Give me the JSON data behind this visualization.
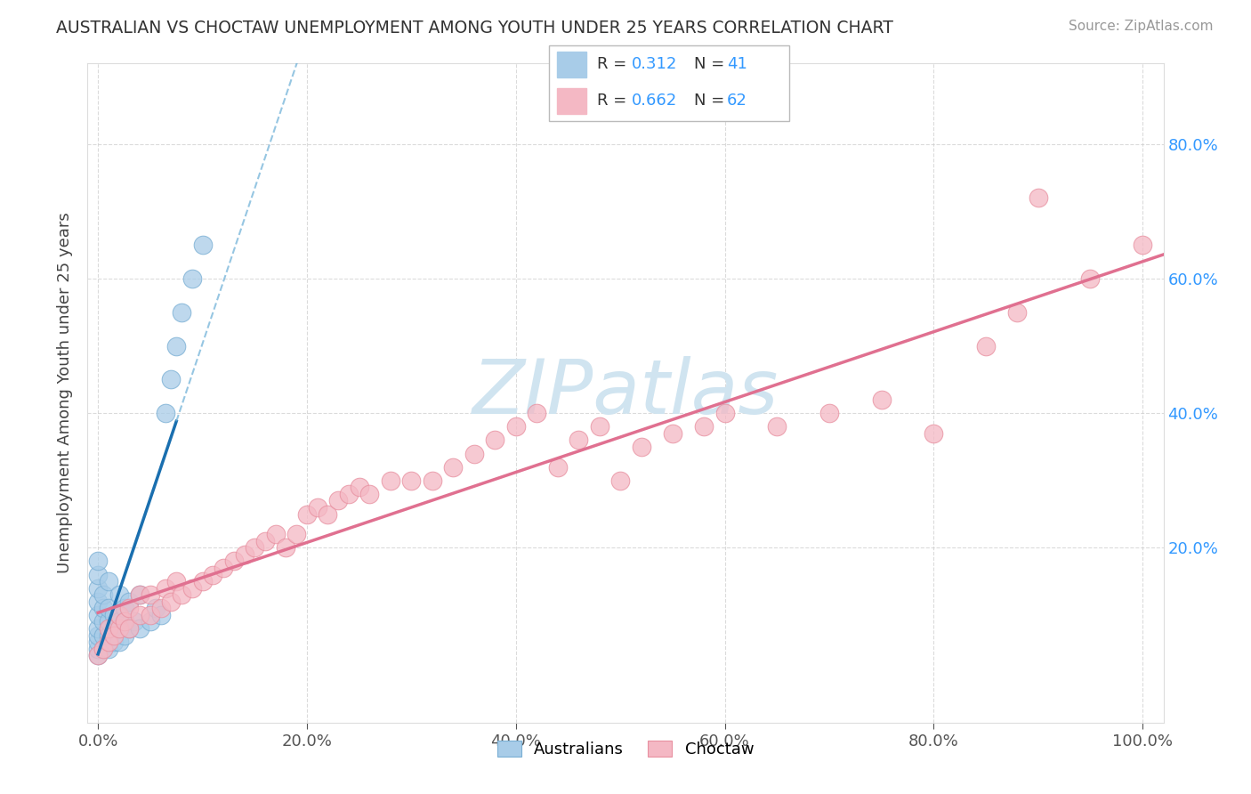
{
  "title": "AUSTRALIAN VS CHOCTAW UNEMPLOYMENT AMONG YOUTH UNDER 25 YEARS CORRELATION CHART",
  "source": "Source: ZipAtlas.com",
  "ylabel": "Unemployment Among Youth under 25 years",
  "xlim": [
    -0.01,
    1.02
  ],
  "ylim": [
    -0.06,
    0.92
  ],
  "xtick_labels": [
    "0.0%",
    "20.0%",
    "40.0%",
    "60.0%",
    "80.0%",
    "100.0%"
  ],
  "xtick_vals": [
    0.0,
    0.2,
    0.4,
    0.6,
    0.8,
    1.0
  ],
  "ytick_labels": [
    "20.0%",
    "40.0%",
    "60.0%",
    "80.0%"
  ],
  "ytick_vals": [
    0.2,
    0.4,
    0.6,
    0.8
  ],
  "blue_color": "#a8cce8",
  "pink_color": "#f4b8c4",
  "blue_edge": "#7aafd4",
  "pink_edge": "#e890a0",
  "line_blue_solid": "#1a6faf",
  "line_blue_dash": "#6aaed6",
  "line_pink": "#e07090",
  "title_color": "#333333",
  "watermark_color": "#d0e4f0",
  "r_value_color": "#3399ff",
  "background_color": "#ffffff",
  "grid_color": "#cccccc",
  "right_tick_color": "#3399ff",
  "left_tick_color": "#555555",
  "aus_x": [
    0.0,
    0.0,
    0.0,
    0.0,
    0.0,
    0.0,
    0.0,
    0.0,
    0.0,
    0.0,
    0.005,
    0.005,
    0.005,
    0.005,
    0.005,
    0.01,
    0.01,
    0.01,
    0.01,
    0.01,
    0.015,
    0.015,
    0.02,
    0.02,
    0.02,
    0.025,
    0.025,
    0.03,
    0.03,
    0.035,
    0.04,
    0.04,
    0.05,
    0.055,
    0.06,
    0.065,
    0.07,
    0.075,
    0.08,
    0.09,
    0.1
  ],
  "aus_y": [
    0.04,
    0.05,
    0.06,
    0.07,
    0.08,
    0.1,
    0.12,
    0.14,
    0.16,
    0.18,
    0.05,
    0.07,
    0.09,
    0.11,
    0.13,
    0.05,
    0.07,
    0.09,
    0.11,
    0.15,
    0.06,
    0.1,
    0.06,
    0.09,
    0.13,
    0.07,
    0.11,
    0.08,
    0.12,
    0.09,
    0.08,
    0.13,
    0.09,
    0.11,
    0.1,
    0.4,
    0.45,
    0.5,
    0.55,
    0.6,
    0.65
  ],
  "cho_x": [
    0.0,
    0.005,
    0.01,
    0.01,
    0.015,
    0.02,
    0.02,
    0.025,
    0.03,
    0.03,
    0.04,
    0.04,
    0.05,
    0.05,
    0.06,
    0.065,
    0.07,
    0.075,
    0.08,
    0.09,
    0.1,
    0.11,
    0.12,
    0.13,
    0.14,
    0.15,
    0.16,
    0.17,
    0.18,
    0.19,
    0.2,
    0.21,
    0.22,
    0.23,
    0.24,
    0.25,
    0.26,
    0.28,
    0.3,
    0.32,
    0.34,
    0.36,
    0.38,
    0.4,
    0.42,
    0.44,
    0.46,
    0.48,
    0.5,
    0.52,
    0.55,
    0.58,
    0.6,
    0.65,
    0.7,
    0.75,
    0.8,
    0.85,
    0.88,
    0.9,
    0.95,
    1.0
  ],
  "cho_y": [
    0.04,
    0.05,
    0.06,
    0.08,
    0.07,
    0.08,
    0.1,
    0.09,
    0.08,
    0.11,
    0.1,
    0.13,
    0.1,
    0.13,
    0.11,
    0.14,
    0.12,
    0.15,
    0.13,
    0.14,
    0.15,
    0.16,
    0.17,
    0.18,
    0.19,
    0.2,
    0.21,
    0.22,
    0.2,
    0.22,
    0.25,
    0.26,
    0.25,
    0.27,
    0.28,
    0.29,
    0.28,
    0.3,
    0.3,
    0.3,
    0.32,
    0.34,
    0.36,
    0.38,
    0.4,
    0.32,
    0.36,
    0.38,
    0.3,
    0.35,
    0.37,
    0.38,
    0.4,
    0.38,
    0.4,
    0.42,
    0.37,
    0.5,
    0.55,
    0.72,
    0.6,
    0.65
  ]
}
